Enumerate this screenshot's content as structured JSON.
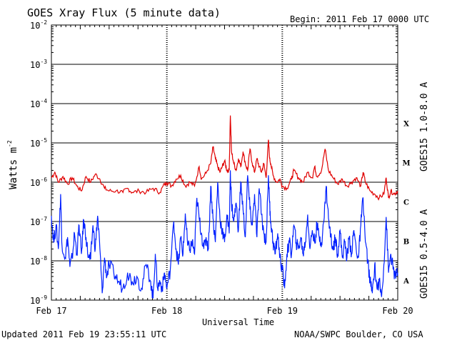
{
  "header": {
    "title": "GOES Xray Flux (5 minute data)",
    "begin": "Begin:  2011 Feb 17 0000 UTC"
  },
  "footer": {
    "updated": "Updated 2011 Feb 19 23:55:11 UTC",
    "source": "NOAA/SWPC Boulder, CO USA"
  },
  "chart_data": {
    "type": "line",
    "title": "GOES Xray Flux (5 minute data)",
    "xlabel": "Universal Time",
    "ylabel_main": "Watts m",
    "ylabel_exp": "-2",
    "scale": "log",
    "ylim": [
      1e-09,
      0.01
    ],
    "xlim_days": [
      0,
      3
    ],
    "x_ticks": [
      "Feb 17",
      "Feb 18",
      "Feb 19",
      "Feb 20"
    ],
    "y_ticks": [
      {
        "base": "10",
        "exp": "-2"
      },
      {
        "base": "10",
        "exp": "-3"
      },
      {
        "base": "10",
        "exp": "-4"
      },
      {
        "base": "10",
        "exp": "-5"
      },
      {
        "base": "10",
        "exp": "-6"
      },
      {
        "base": "10",
        "exp": "-7"
      },
      {
        "base": "10",
        "exp": "-8"
      },
      {
        "base": "10",
        "exp": "-9"
      }
    ],
    "flare_classes": [
      "X",
      "M",
      "C",
      "B",
      "A"
    ],
    "grid": true,
    "series": [
      {
        "name": "GOES15 1.0-8.0 A",
        "color": "#e00000",
        "points": [
          [
            0.0,
            1.3e-06
          ],
          [
            0.03,
            1.8e-06
          ],
          [
            0.06,
            1e-06
          ],
          [
            0.1,
            1.4e-06
          ],
          [
            0.14,
            9e-07
          ],
          [
            0.18,
            1.3e-06
          ],
          [
            0.22,
            8e-07
          ],
          [
            0.26,
            6e-07
          ],
          [
            0.3,
            1.4e-06
          ],
          [
            0.34,
            1e-06
          ],
          [
            0.38,
            1.6e-06
          ],
          [
            0.42,
            1.2e-06
          ],
          [
            0.46,
            7e-07
          ],
          [
            0.5,
            6e-07
          ],
          [
            0.56,
            6e-07
          ],
          [
            0.62,
            5.5e-07
          ],
          [
            0.66,
            7e-07
          ],
          [
            0.7,
            5.5e-07
          ],
          [
            0.76,
            6e-07
          ],
          [
            0.82,
            5.5e-07
          ],
          [
            0.88,
            7e-07
          ],
          [
            0.94,
            5.5e-07
          ],
          [
            0.98,
            9e-07
          ],
          [
            1.0,
            1e-06
          ],
          [
            1.04,
            8e-07
          ],
          [
            1.08,
            1.2e-06
          ],
          [
            1.12,
            1.5e-06
          ],
          [
            1.16,
            8e-07
          ],
          [
            1.2,
            1e-06
          ],
          [
            1.24,
            8e-07
          ],
          [
            1.28,
            2.5e-06
          ],
          [
            1.3,
            1.2e-06
          ],
          [
            1.34,
            1.7e-06
          ],
          [
            1.38,
            3e-06
          ],
          [
            1.4,
            8e-06
          ],
          [
            1.42,
            4e-06
          ],
          [
            1.44,
            2.5e-06
          ],
          [
            1.46,
            1.8e-06
          ],
          [
            1.48,
            2.5e-06
          ],
          [
            1.5,
            3.5e-06
          ],
          [
            1.52,
            2e-06
          ],
          [
            1.54,
            2e-06
          ],
          [
            1.55,
            5e-05
          ],
          [
            1.56,
            6e-06
          ],
          [
            1.58,
            3e-06
          ],
          [
            1.6,
            2e-06
          ],
          [
            1.62,
            4e-06
          ],
          [
            1.64,
            2.5e-06
          ],
          [
            1.66,
            6e-06
          ],
          [
            1.68,
            3e-06
          ],
          [
            1.7,
            2e-06
          ],
          [
            1.72,
            7e-06
          ],
          [
            1.74,
            3e-06
          ],
          [
            1.76,
            1.8e-06
          ],
          [
            1.78,
            4e-06
          ],
          [
            1.8,
            2.5e-06
          ],
          [
            1.82,
            1.8e-06
          ],
          [
            1.84,
            3e-06
          ],
          [
            1.86,
            1.3e-06
          ],
          [
            1.88,
            1.2e-05
          ],
          [
            1.89,
            4e-06
          ],
          [
            1.9,
            3e-06
          ],
          [
            1.92,
            1.5e-06
          ],
          [
            1.95,
            1e-06
          ],
          [
            1.98,
            1.2e-06
          ],
          [
            2.0,
            8e-07
          ],
          [
            2.04,
            7e-07
          ],
          [
            2.08,
            1.2e-06
          ],
          [
            2.1,
            2e-06
          ],
          [
            2.14,
            1.3e-06
          ],
          [
            2.18,
            1e-06
          ],
          [
            2.22,
            1.8e-06
          ],
          [
            2.26,
            1.3e-06
          ],
          [
            2.28,
            2.5e-06
          ],
          [
            2.3,
            1.4e-06
          ],
          [
            2.34,
            2e-06
          ],
          [
            2.37,
            7e-06
          ],
          [
            2.4,
            2e-06
          ],
          [
            2.44,
            1.3e-06
          ],
          [
            2.48,
            9e-07
          ],
          [
            2.52,
            1.2e-06
          ],
          [
            2.56,
            8e-07
          ],
          [
            2.6,
            1e-06
          ],
          [
            2.64,
            1.3e-06
          ],
          [
            2.68,
            8e-07
          ],
          [
            2.7,
            1.8e-06
          ],
          [
            2.72,
            1e-06
          ],
          [
            2.76,
            6e-07
          ],
          [
            2.8,
            5e-07
          ],
          [
            2.84,
            4e-07
          ],
          [
            2.88,
            5e-07
          ],
          [
            2.9,
            1.3e-06
          ],
          [
            2.92,
            4e-07
          ],
          [
            2.94,
            6e-07
          ],
          [
            2.97,
            5e-07
          ],
          [
            3.0,
            6e-07
          ]
        ]
      },
      {
        "name": "GOES15 0.5-4.0 A",
        "color": "#0020ff",
        "points": [
          [
            0.0,
            1.4e-07
          ],
          [
            0.02,
            3e-08
          ],
          [
            0.04,
            8e-08
          ],
          [
            0.06,
            2e-08
          ],
          [
            0.08,
            5e-07
          ],
          [
            0.09,
            3e-08
          ],
          [
            0.12,
            1.2e-08
          ],
          [
            0.14,
            4e-08
          ],
          [
            0.16,
            7e-09
          ],
          [
            0.18,
            1.2e-08
          ],
          [
            0.2,
            5e-08
          ],
          [
            0.22,
            1.5e-08
          ],
          [
            0.24,
            8e-08
          ],
          [
            0.26,
            1.5e-08
          ],
          [
            0.28,
            1.1e-07
          ],
          [
            0.3,
            4e-08
          ],
          [
            0.32,
            1.2e-08
          ],
          [
            0.34,
            1.1e-08
          ],
          [
            0.36,
            8e-08
          ],
          [
            0.38,
            2e-08
          ],
          [
            0.4,
            1.4e-07
          ],
          [
            0.42,
            2e-08
          ],
          [
            0.44,
            1.5e-09
          ],
          [
            0.46,
            1.2e-08
          ],
          [
            0.48,
            4e-09
          ],
          [
            0.5,
            8e-09
          ],
          [
            0.54,
            5e-09
          ],
          [
            0.58,
            3e-09
          ],
          [
            0.62,
            2e-09
          ],
          [
            0.66,
            5e-09
          ],
          [
            0.7,
            3e-09
          ],
          [
            0.74,
            4e-09
          ],
          [
            0.78,
            2e-09
          ],
          [
            0.82,
            8e-09
          ],
          [
            0.86,
            3e-09
          ],
          [
            0.88,
            1.1e-09
          ],
          [
            0.9,
            1.5e-08
          ],
          [
            0.92,
            2e-09
          ],
          [
            0.94,
            3e-09
          ],
          [
            0.96,
            2e-09
          ],
          [
            0.98,
            5e-09
          ],
          [
            1.0,
            2e-09
          ],
          [
            1.03,
            6e-09
          ],
          [
            1.06,
            1e-07
          ],
          [
            1.08,
            2e-08
          ],
          [
            1.1,
            8e-09
          ],
          [
            1.12,
            4e-08
          ],
          [
            1.14,
            1.5e-08
          ],
          [
            1.16,
            1.6e-07
          ],
          [
            1.18,
            2.5e-08
          ],
          [
            1.2,
            2e-08
          ],
          [
            1.22,
            3e-08
          ],
          [
            1.24,
            1.5e-08
          ],
          [
            1.26,
            4e-07
          ],
          [
            1.28,
            1.2e-07
          ],
          [
            1.3,
            5e-08
          ],
          [
            1.32,
            2e-08
          ],
          [
            1.34,
            4e-08
          ],
          [
            1.36,
            2e-08
          ],
          [
            1.38,
            8e-07
          ],
          [
            1.4,
            1.2e-07
          ],
          [
            1.42,
            3e-08
          ],
          [
            1.44,
            1e-06
          ],
          [
            1.46,
            1.2e-07
          ],
          [
            1.48,
            6e-08
          ],
          [
            1.5,
            3e-08
          ],
          [
            1.52,
            1.5e-07
          ],
          [
            1.54,
            5e-08
          ],
          [
            1.55,
            2e-06
          ],
          [
            1.56,
            3e-07
          ],
          [
            1.58,
            1e-07
          ],
          [
            1.6,
            3e-07
          ],
          [
            1.62,
            6e-08
          ],
          [
            1.64,
            1e-06
          ],
          [
            1.66,
            2e-07
          ],
          [
            1.68,
            4e-08
          ],
          [
            1.7,
            1.5e-06
          ],
          [
            1.72,
            2e-07
          ],
          [
            1.74,
            8e-08
          ],
          [
            1.76,
            5e-07
          ],
          [
            1.78,
            4e-08
          ],
          [
            1.8,
            7e-07
          ],
          [
            1.82,
            1.5e-07
          ],
          [
            1.84,
            5e-08
          ],
          [
            1.86,
            3e-08
          ],
          [
            1.88,
            1.5e-06
          ],
          [
            1.89,
            3e-07
          ],
          [
            1.9,
            1e-07
          ],
          [
            1.92,
            3e-08
          ],
          [
            1.94,
            1.5e-08
          ],
          [
            1.96,
            5e-08
          ],
          [
            1.98,
            1.2e-08
          ],
          [
            2.0,
            6e-09
          ],
          [
            2.02,
            2e-09
          ],
          [
            2.04,
            1.5e-08
          ],
          [
            2.06,
            3e-08
          ],
          [
            2.08,
            1.5e-08
          ],
          [
            2.1,
            8e-08
          ],
          [
            2.12,
            3e-08
          ],
          [
            2.14,
            2e-08
          ],
          [
            2.16,
            4e-08
          ],
          [
            2.18,
            1.5e-08
          ],
          [
            2.2,
            3e-08
          ],
          [
            2.22,
            1.5e-07
          ],
          [
            2.24,
            2e-08
          ],
          [
            2.26,
            6e-08
          ],
          [
            2.28,
            3e-08
          ],
          [
            2.3,
            8e-08
          ],
          [
            2.32,
            4e-08
          ],
          [
            2.34,
            3e-08
          ],
          [
            2.36,
            1e-07
          ],
          [
            2.38,
            8e-07
          ],
          [
            2.4,
            1.2e-07
          ],
          [
            2.42,
            4e-08
          ],
          [
            2.44,
            2e-08
          ],
          [
            2.46,
            4e-08
          ],
          [
            2.48,
            1.5e-08
          ],
          [
            2.5,
            6e-08
          ],
          [
            2.52,
            1.2e-08
          ],
          [
            2.54,
            3e-08
          ],
          [
            2.56,
            1.2e-08
          ],
          [
            2.58,
            4e-08
          ],
          [
            2.6,
            1.5e-08
          ],
          [
            2.62,
            6e-08
          ],
          [
            2.64,
            2e-08
          ],
          [
            2.66,
            1.2e-08
          ],
          [
            2.68,
            8e-08
          ],
          [
            2.7,
            4e-07
          ],
          [
            2.72,
            3e-08
          ],
          [
            2.74,
            1e-08
          ],
          [
            2.76,
            3e-09
          ],
          [
            2.78,
            1.5e-09
          ],
          [
            2.8,
            8e-09
          ],
          [
            2.82,
            2e-09
          ],
          [
            2.84,
            3e-09
          ],
          [
            2.86,
            1.2e-09
          ],
          [
            2.88,
            8e-09
          ],
          [
            2.9,
            1.3e-07
          ],
          [
            2.92,
            5e-09
          ],
          [
            2.94,
            1.5e-08
          ],
          [
            2.96,
            6e-09
          ],
          [
            2.98,
            4e-09
          ],
          [
            3.0,
            5e-09
          ]
        ]
      }
    ]
  }
}
